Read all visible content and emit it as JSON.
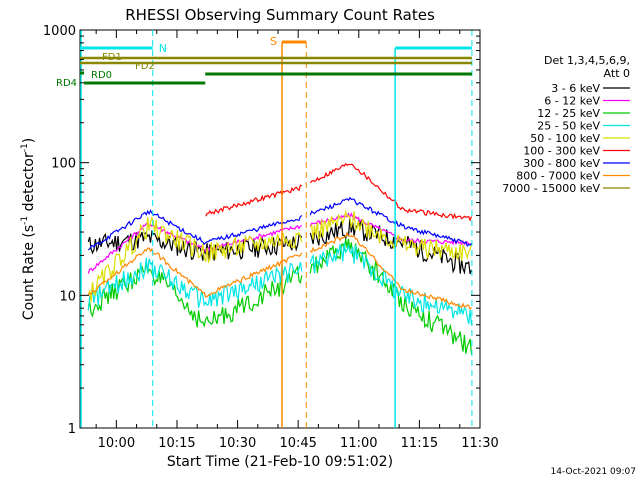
{
  "chart_data": {
    "type": "line",
    "title": "RHESSI Observing Summary Count Rates",
    "xlabel": "Start Time (21-Feb-10 09:51:02)",
    "ylabel_main": "Count Rate (s",
    "ylabel_exp1": "-1",
    "ylabel_mid": " detector",
    "ylabel_exp2": "-1",
    "ylabel_end": ")",
    "yscale": "log",
    "xlim": [
      "09:51",
      "11:30"
    ],
    "ylim": [
      1,
      1000
    ],
    "x_ticks": [
      "10:00",
      "10:15",
      "10:30",
      "10:45",
      "11:00",
      "11:15",
      "11:30"
    ],
    "y_ticks": [
      "1",
      "10",
      "100",
      "1000"
    ],
    "legend_header": [
      "Det 1,3,4,5,6,9,",
      "Att 0"
    ],
    "legend_position": "right",
    "timestamp": "14-Oct-2021 09:07",
    "series": [
      {
        "name": "3 - 6 keV",
        "color": "#000000",
        "values": [
          24,
          27,
          21,
          25,
          33,
          25,
          16
        ]
      },
      {
        "name": "6 - 12 keV",
        "color": "#ff00ff",
        "values": [
          15,
          35,
          22,
          33,
          40,
          26,
          25
        ]
      },
      {
        "name": "12 - 25 keV",
        "color": "#00cc00",
        "values": [
          8,
          16,
          6,
          14,
          24,
          9,
          4
        ]
      },
      {
        "name": "25 - 50 keV",
        "color": "#00e5e5",
        "values": [
          9,
          17,
          9,
          16,
          22,
          10,
          7
        ]
      },
      {
        "name": "50 - 100 keV",
        "color": "#dddd00",
        "values": [
          10,
          34,
          21,
          28,
          38,
          24,
          21
        ]
      },
      {
        "name": "100 - 300 keV",
        "color": "#ff0000",
        "values": [
          null,
          null,
          41,
          64,
          100,
          44,
          38
        ]
      },
      {
        "name": "300 - 800 keV",
        "color": "#0000ff",
        "values": [
          22,
          43,
          25,
          38,
          53,
          33,
          24
        ]
      },
      {
        "name": "800 - 7000 keV",
        "color": "#ff8800",
        "values": [
          10,
          23,
          10,
          20,
          29,
          11,
          8
        ]
      },
      {
        "name": "7000 - 15000 keV",
        "color": "#888800",
        "values": []
      }
    ],
    "flags": [
      {
        "label": "N",
        "color": "#00e5e5"
      },
      {
        "label": "S",
        "color": "#ff8800"
      },
      {
        "label": "FD1",
        "color": "#888800"
      },
      {
        "label": "FD2",
        "color": "#888800"
      },
      {
        "label": "RD0",
        "color": "#007700"
      },
      {
        "label": "RD4",
        "color": "#007700"
      }
    ],
    "grid": false
  }
}
